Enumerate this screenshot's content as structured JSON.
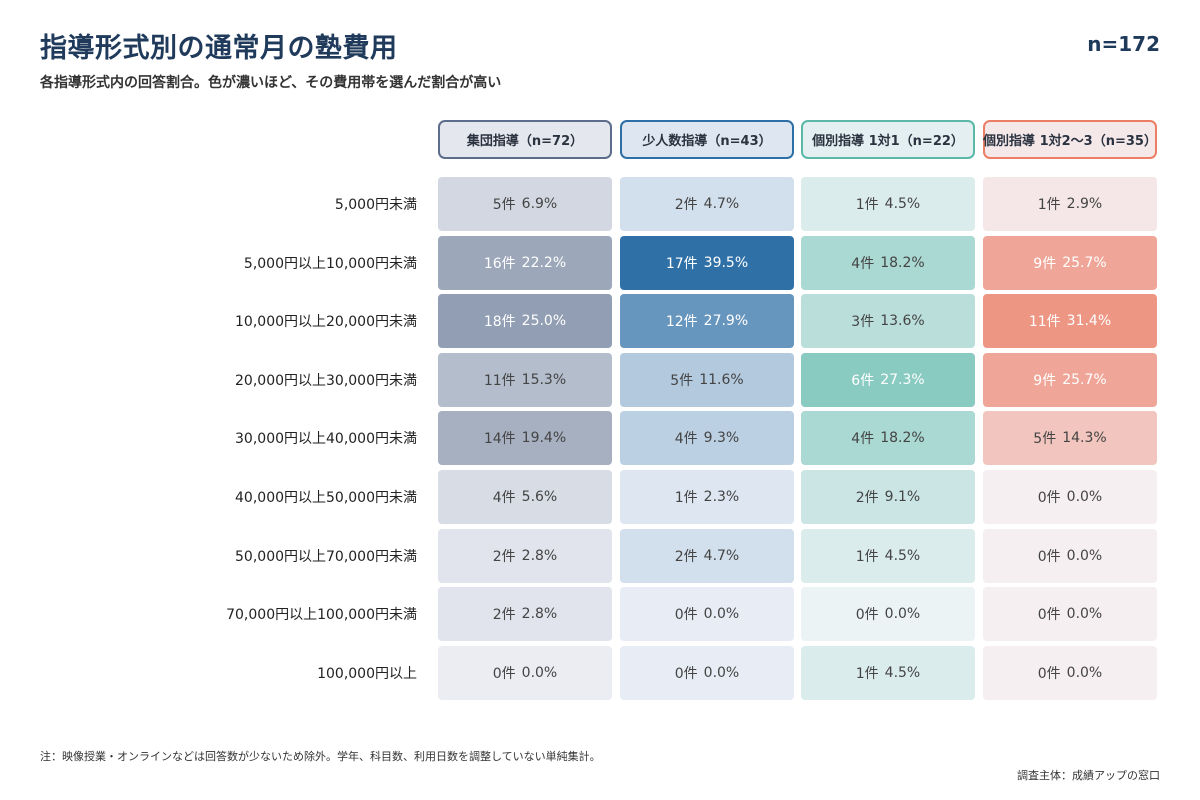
{
  "title": "指導形式別の通常月の塾費用",
  "subtitle": "各指導形式内の回答割合。色が濃いほど、その費用帯を選んだ割合が高い",
  "total_n": "n=172",
  "footnote": "注：映像授業・オンラインなどは回答数が少ないため除外。学年、科目数、利用日数を調整していない単純集計。",
  "source": "調査主体：成績アップの窓口",
  "colors": {
    "group": "#5c6e8c",
    "small_group": "#2d6fa6",
    "one_on_one": "#5bb8a8",
    "one_to_few": "#ec7e66"
  },
  "chart_data": {
    "type": "heatmap",
    "title": "指導形式別の通常月の塾費用",
    "subtitle": "各指導形式内の回答割合。色が濃いほど、その費用帯を選んだ割合が高い",
    "rows": [
      "5,000円未満",
      "5,000円以上10,000円未満",
      "10,000円以上20,000円未満",
      "20,000円以上30,000円未満",
      "30,000円以上40,000円未満",
      "40,000円以上50,000円未満",
      "50,000円以上70,000円未満",
      "70,000円以上100,000円未満",
      "100,000円以上"
    ],
    "columns": [
      {
        "label": "集団指導（n=72）",
        "color": "#5c6e8c",
        "counts": [
          "5件",
          "16件",
          "18件",
          "11件",
          "14件",
          "4件",
          "2件",
          "2件",
          "0件"
        ],
        "percents": [
          "6.9%",
          "22.2%",
          "25.0%",
          "15.3%",
          "19.4%",
          "5.6%",
          "2.8%",
          "2.8%",
          "0.0%"
        ],
        "values": [
          6.9,
          22.2,
          25.0,
          15.3,
          19.4,
          5.6,
          2.8,
          2.8,
          0.0
        ]
      },
      {
        "label": "少人数指導（n=43）",
        "color": "#2d6fa6",
        "counts": [
          "2件",
          "17件",
          "12件",
          "5件",
          "4件",
          "1件",
          "2件",
          "0件",
          "0件"
        ],
        "percents": [
          "4.7%",
          "39.5%",
          "27.9%",
          "11.6%",
          "9.3%",
          "2.3%",
          "4.7%",
          "0.0%",
          "0.0%"
        ],
        "values": [
          4.7,
          39.5,
          27.9,
          11.6,
          9.3,
          2.3,
          4.7,
          0.0,
          0.0
        ]
      },
      {
        "label": "個別指導 1対1（n=22）",
        "color": "#5bb8a8",
        "counts": [
          "1件",
          "4件",
          "3件",
          "6件",
          "4件",
          "2件",
          "1件",
          "0件",
          "1件"
        ],
        "percents": [
          "4.5%",
          "18.2%",
          "13.6%",
          "27.3%",
          "18.2%",
          "9.1%",
          "4.5%",
          "0.0%",
          "4.5%"
        ],
        "values": [
          4.5,
          18.2,
          13.6,
          27.3,
          18.2,
          9.1,
          4.5,
          0.0,
          4.5
        ]
      },
      {
        "label": "個別指導 1対2〜3（n=35）",
        "color": "#ec7e66",
        "counts": [
          "1件",
          "9件",
          "11件",
          "9件",
          "5件",
          "0件",
          "0件",
          "0件",
          "0件"
        ],
        "percents": [
          "2.9%",
          "25.7%",
          "31.4%",
          "25.7%",
          "14.3%",
          "0.0%",
          "0.0%",
          "0.0%",
          "0.0%"
        ],
        "values": [
          2.9,
          25.7,
          31.4,
          25.7,
          14.3,
          0.0,
          0.0,
          0.0,
          0.0
        ]
      }
    ]
  }
}
